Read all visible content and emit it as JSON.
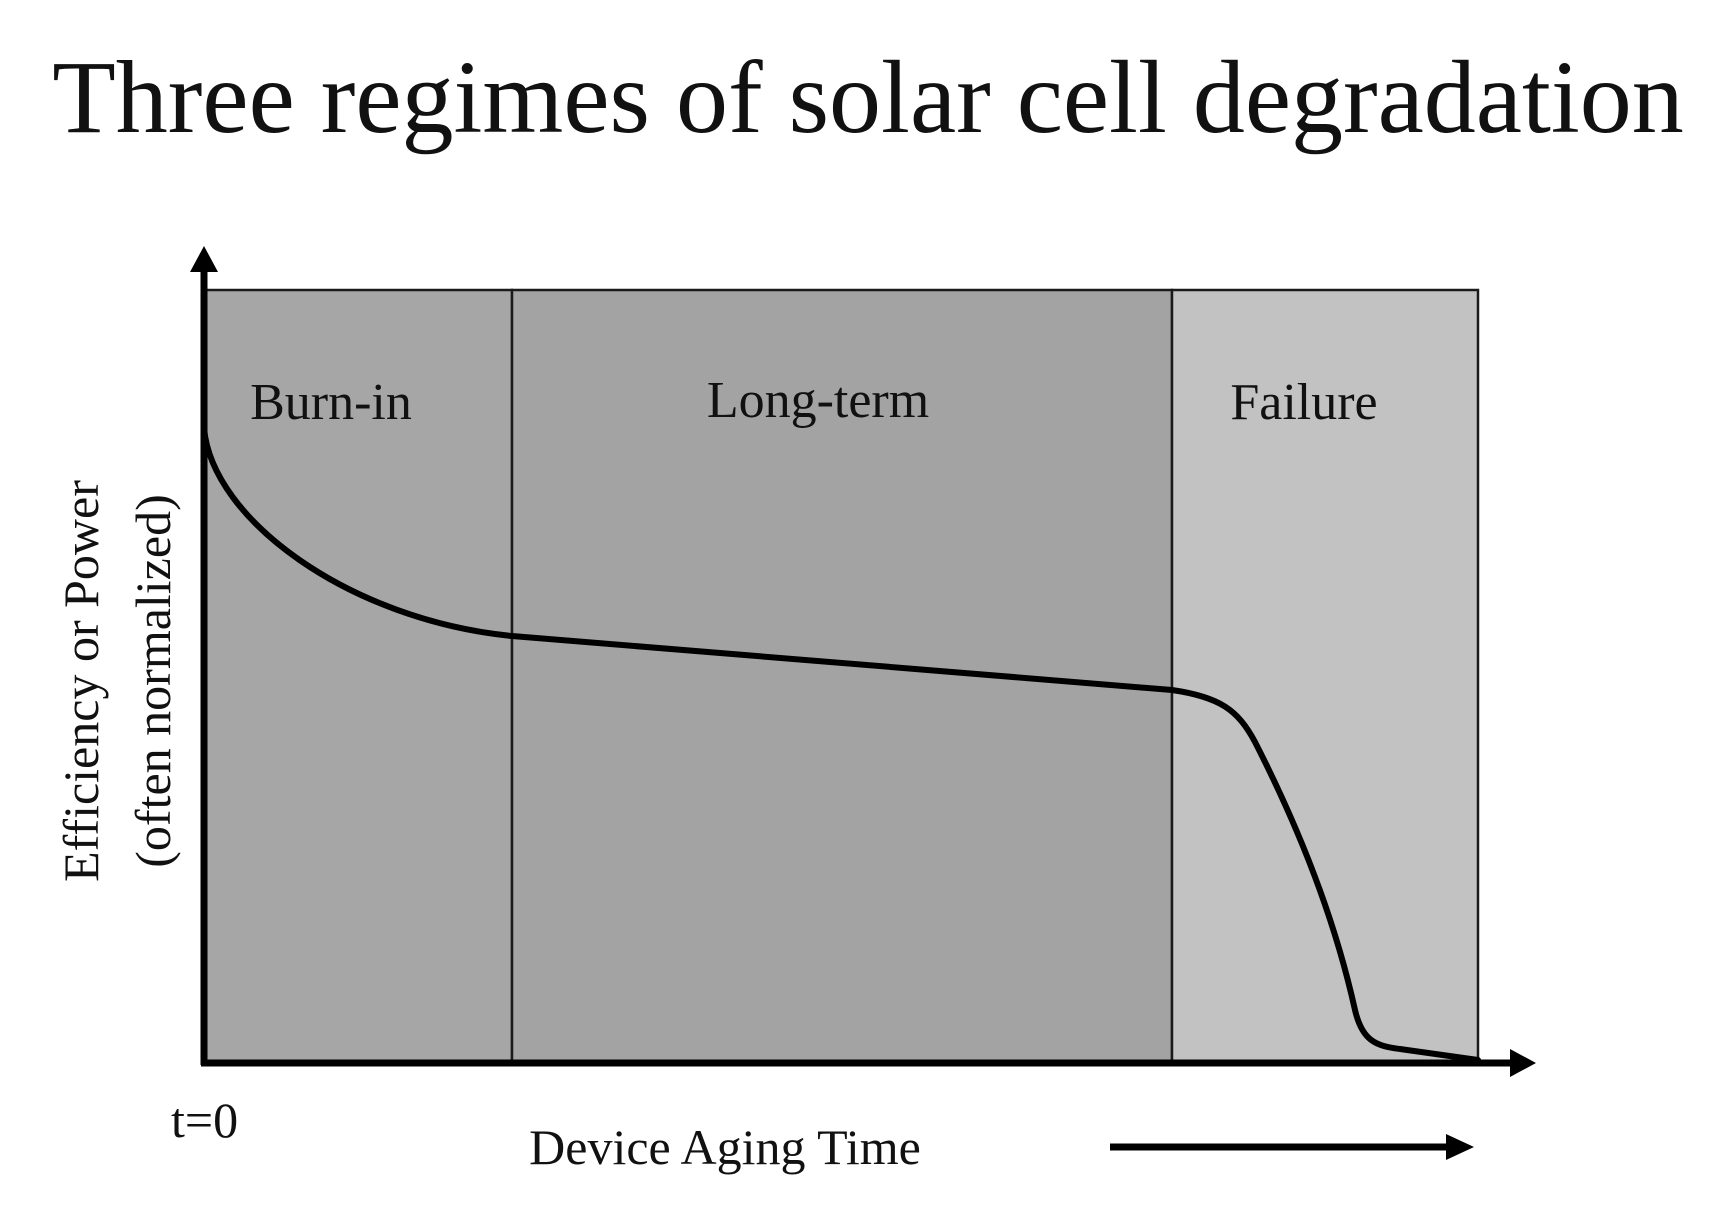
{
  "title": "Three regimes of solar cell degradation",
  "axes": {
    "y_label_line1": "Efficiency or Power",
    "y_label_line2": "(often normalized)",
    "x_label": "Device Aging Time",
    "origin_label": "t=0"
  },
  "regimes": [
    {
      "label": "Burn-in",
      "color": "#a6a6a6"
    },
    {
      "label": "Long-term",
      "color": "#a3a3a3"
    },
    {
      "label": "Failure",
      "color": "#c2c2c2"
    }
  ],
  "colors": {
    "curve": "#000000",
    "axis": "#000000",
    "border": "#1a1a1a"
  }
}
